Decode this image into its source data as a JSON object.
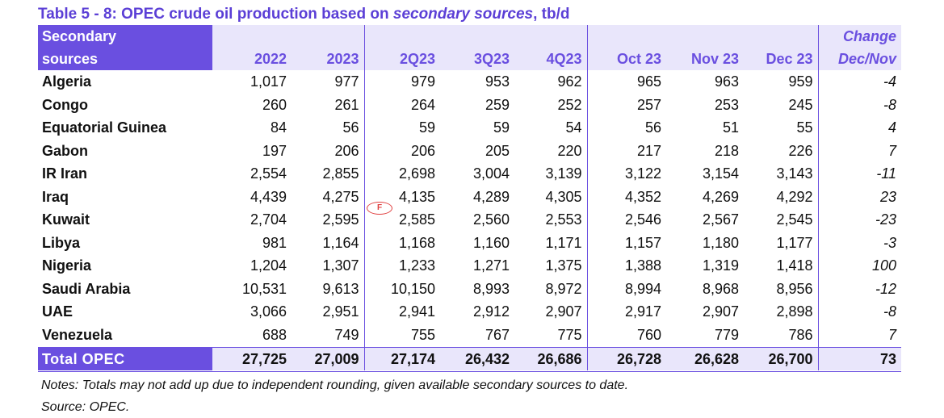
{
  "title": {
    "prefix": "Table 5 - 8: OPEC crude oil production based on ",
    "emphasis": "secondary sources",
    "suffix": ", tb/d"
  },
  "header": {
    "label_line1": "Secondary",
    "label_line2": "sources",
    "change_line1": "Change",
    "change_line2": "Dec/Nov",
    "columns": [
      "2022",
      "2023",
      "2Q23",
      "3Q23",
      "4Q23",
      "Oct 23",
      "Nov 23",
      "Dec 23"
    ]
  },
  "rows": [
    {
      "name": "Algeria",
      "values": [
        "1,017",
        "977",
        "979",
        "953",
        "962",
        "965",
        "963",
        "959"
      ],
      "change": "-4"
    },
    {
      "name": "Congo",
      "values": [
        "260",
        "261",
        "264",
        "259",
        "252",
        "257",
        "253",
        "245"
      ],
      "change": "-8"
    },
    {
      "name": "Equatorial Guinea",
      "values": [
        "84",
        "56",
        "59",
        "59",
        "54",
        "56",
        "51",
        "55"
      ],
      "change": "4"
    },
    {
      "name": "Gabon",
      "values": [
        "197",
        "206",
        "206",
        "205",
        "220",
        "217",
        "218",
        "226"
      ],
      "change": "7"
    },
    {
      "name": "IR Iran",
      "values": [
        "2,554",
        "2,855",
        "2,698",
        "3,004",
        "3,139",
        "3,122",
        "3,154",
        "3,143"
      ],
      "change": "-11"
    },
    {
      "name": "Iraq",
      "values": [
        "4,439",
        "4,275",
        "4,135",
        "4,289",
        "4,305",
        "4,352",
        "4,269",
        "4,292"
      ],
      "change": "23"
    },
    {
      "name": "Kuwait",
      "values": [
        "2,704",
        "2,595",
        "2,585",
        "2,560",
        "2,553",
        "2,546",
        "2,567",
        "2,545"
      ],
      "change": "-23"
    },
    {
      "name": "Libya",
      "values": [
        "981",
        "1,164",
        "1,168",
        "1,160",
        "1,171",
        "1,157",
        "1,180",
        "1,177"
      ],
      "change": "-3"
    },
    {
      "name": "Nigeria",
      "values": [
        "1,204",
        "1,307",
        "1,233",
        "1,271",
        "1,375",
        "1,388",
        "1,319",
        "1,418"
      ],
      "change": "100"
    },
    {
      "name": "Saudi Arabia",
      "values": [
        "10,531",
        "9,613",
        "10,150",
        "8,993",
        "8,972",
        "8,994",
        "8,968",
        "8,956"
      ],
      "change": "-12"
    },
    {
      "name": "UAE",
      "values": [
        "3,066",
        "2,951",
        "2,941",
        "2,912",
        "2,907",
        "2,917",
        "2,907",
        "2,898"
      ],
      "change": "-8"
    },
    {
      "name": "Venezuela",
      "values": [
        "688",
        "749",
        "755",
        "767",
        "775",
        "760",
        "779",
        "786"
      ],
      "change": "7"
    }
  ],
  "total": {
    "name": "Total  OPEC",
    "values": [
      "27,725",
      "27,009",
      "27,174",
      "26,432",
      "26,686",
      "26,728",
      "26,628",
      "26,700"
    ],
    "change": "73"
  },
  "notes": [
    "Notes: Totals may not add up due to independent rounding, given available secondary sources to date.",
    "Source: OPEC."
  ],
  "stamp_text": "F",
  "colors": {
    "accent": "#6a4fe0",
    "header_fill": "#e9e6fb",
    "title": "#5b3fd6"
  }
}
